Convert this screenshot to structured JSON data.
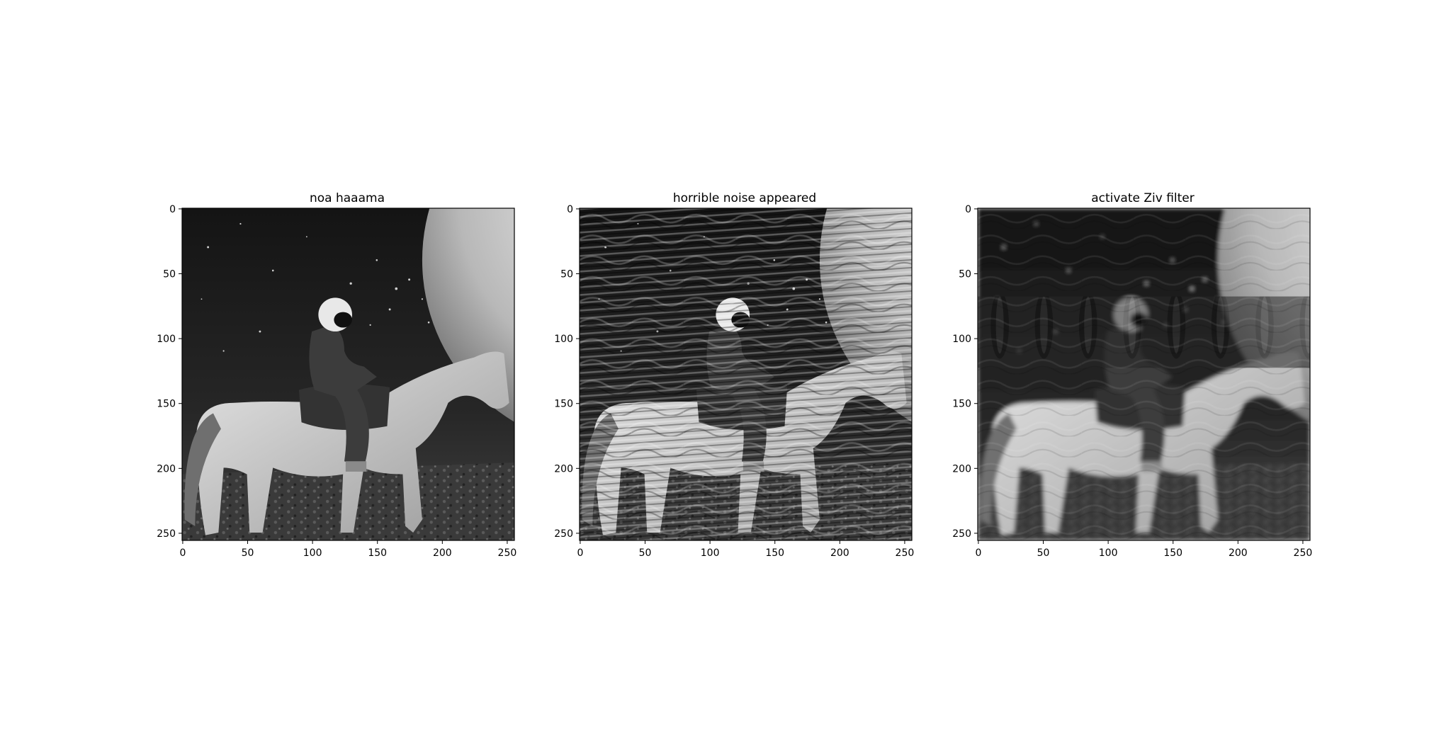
{
  "figure": {
    "panels": [
      {
        "title": "noa haaama",
        "variant": "original",
        "x_ticks": [
          0,
          50,
          100,
          150,
          200,
          250
        ],
        "y_ticks": [
          0,
          50,
          100,
          150,
          200,
          250
        ],
        "x_range": [
          0,
          255
        ],
        "y_range": [
          0,
          255
        ]
      },
      {
        "title": "horrible noise appeared",
        "variant": "noisy",
        "x_ticks": [
          0,
          50,
          100,
          150,
          200,
          250
        ],
        "y_ticks": [
          0,
          50,
          100,
          150,
          200,
          250
        ],
        "x_range": [
          0,
          255
        ],
        "y_range": [
          0,
          255
        ]
      },
      {
        "title": "activate Ziv filter",
        "variant": "filtered",
        "x_ticks": [
          0,
          50,
          100,
          150,
          200,
          250
        ],
        "y_ticks": [
          0,
          50,
          100,
          150,
          200,
          250
        ],
        "x_range": [
          0,
          255
        ],
        "y_range": [
          0,
          255
        ]
      }
    ]
  },
  "image_content": {
    "scene": "grayscale astronaut riding a white horse on a rocky lunar surface beneath a starry sky, with a planet at the top-right corner",
    "colors": {
      "sky": "#1c1c1c",
      "ground": "#3a3a3a",
      "horse": "#d2d2d2",
      "planet": "#e6e6e6"
    }
  }
}
